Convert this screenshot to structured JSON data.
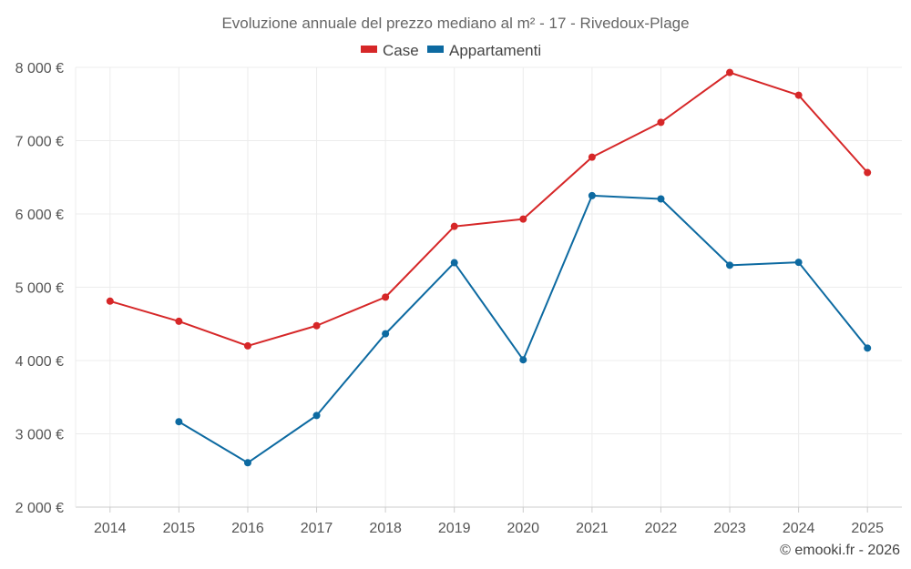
{
  "chart_data": {
    "type": "line",
    "title": "Evoluzione annuale del prezzo mediano al m² - 17 - Rivedoux-Plage",
    "categories": [
      "2014",
      "2015",
      "2016",
      "2017",
      "2018",
      "2019",
      "2020",
      "2021",
      "2022",
      "2023",
      "2024",
      "2025"
    ],
    "series": [
      {
        "name": "Case",
        "color": "#d62728",
        "values": [
          4810,
          4535,
          4200,
          4475,
          4865,
          5830,
          5930,
          6775,
          7250,
          7930,
          7620,
          6565
        ]
      },
      {
        "name": "Appartamenti",
        "color": "#0d6aa1",
        "values": [
          null,
          3165,
          2605,
          3250,
          4365,
          5335,
          4010,
          6250,
          6205,
          5300,
          5340,
          4170
        ]
      }
    ],
    "ylim": [
      2000,
      8000
    ],
    "yticks": [
      2000,
      3000,
      4000,
      5000,
      6000,
      7000,
      8000
    ],
    "ytick_labels": [
      "2 000 €",
      "3 000 €",
      "4 000 €",
      "5 000 €",
      "6 000 €",
      "7 000 €",
      "8 000 €"
    ],
    "xlabel": "",
    "ylabel": "",
    "grid": true,
    "legend_position": "top-center"
  },
  "credit": "© emooki.fr - 2026"
}
